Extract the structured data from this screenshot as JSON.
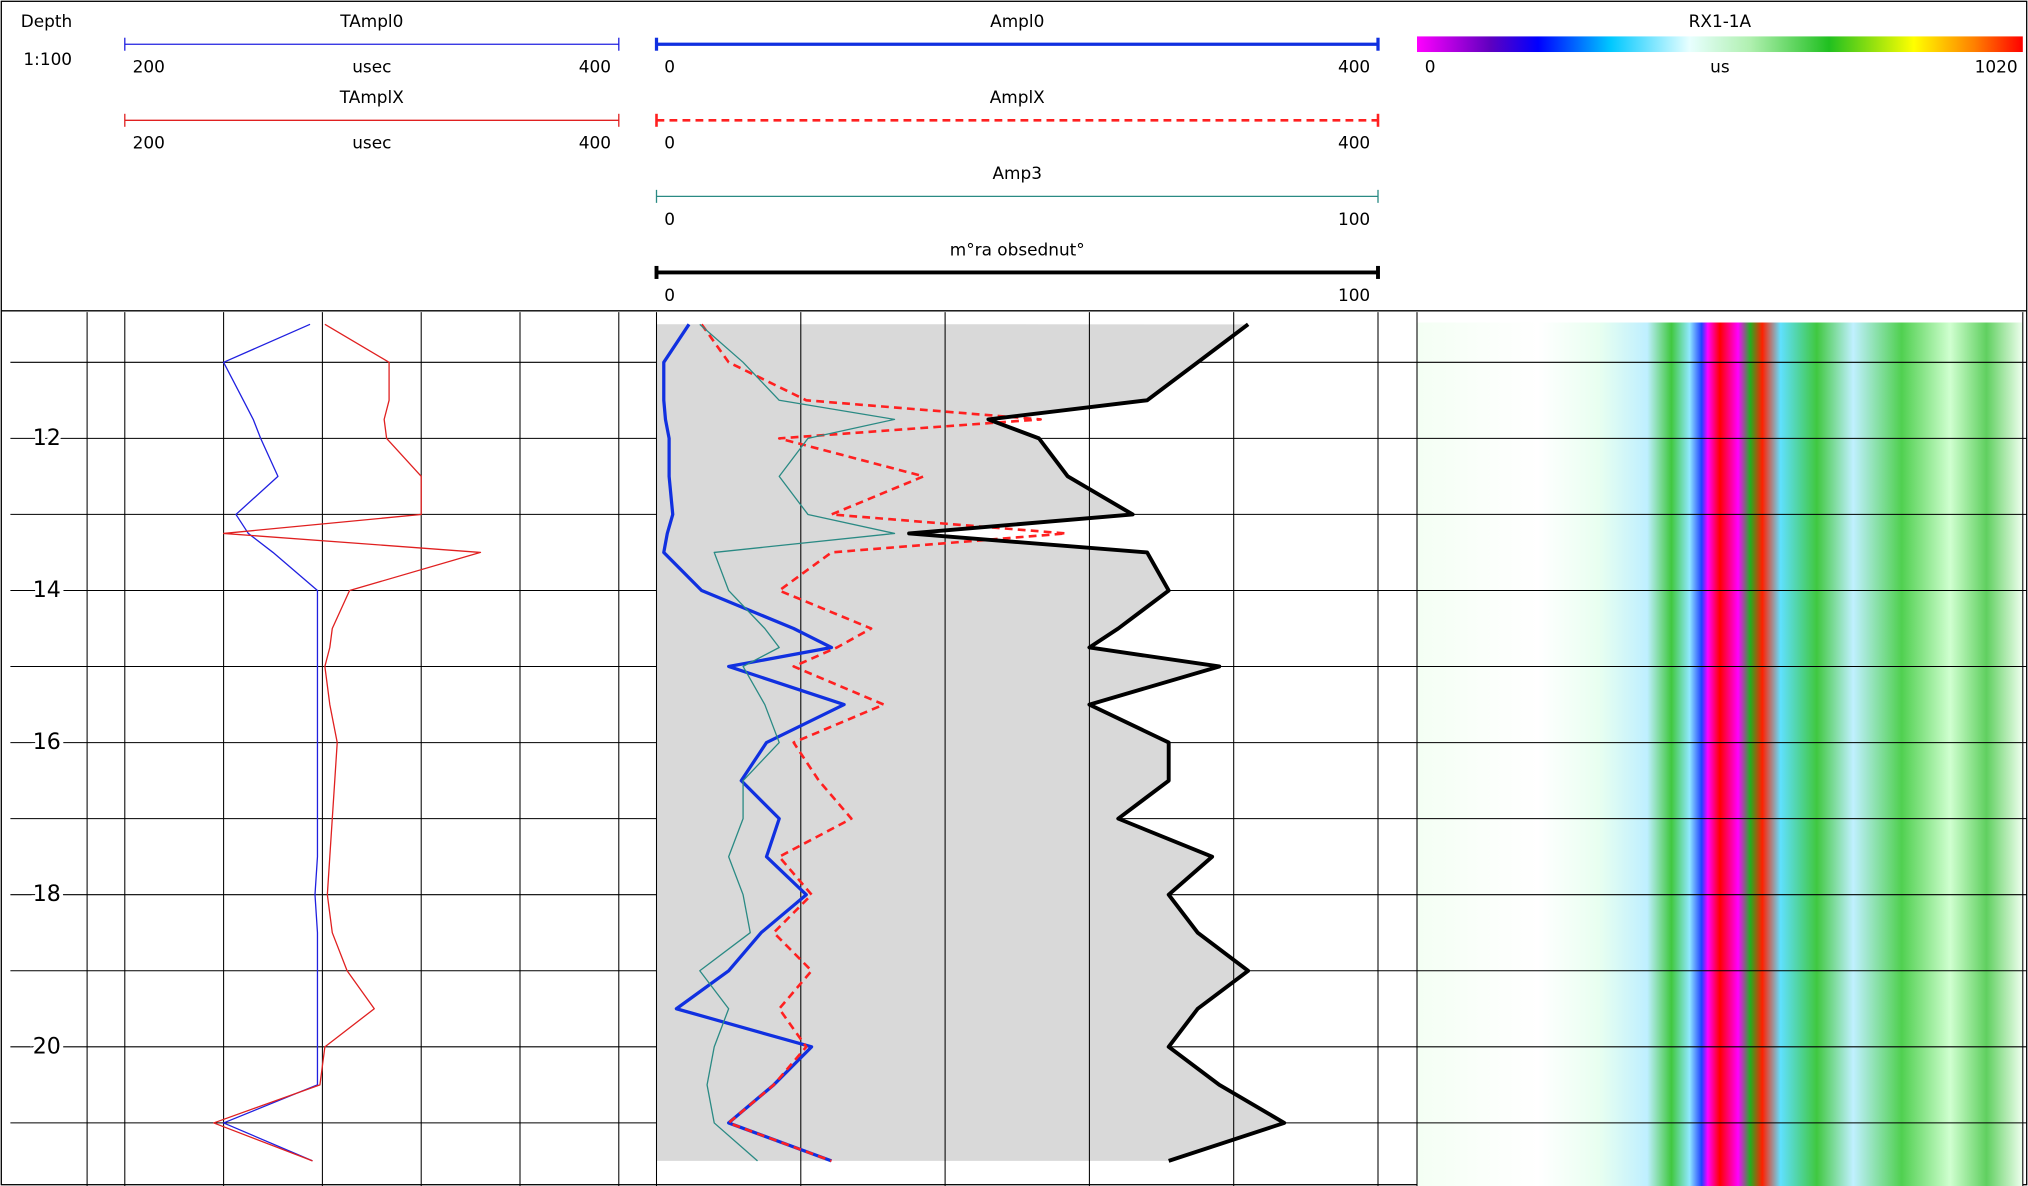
{
  "header": {
    "depth_label": "Depth",
    "scale": "1:100"
  },
  "chart_data": {
    "type": "log",
    "depth": [
      10.5,
      11,
      11.5,
      11.75,
      12,
      12.5,
      13,
      13.25,
      13.5,
      14,
      14.5,
      14.75,
      15,
      15.5,
      16,
      16.5,
      17,
      17.5,
      18,
      18.5,
      19,
      19.5,
      20,
      20.5,
      21,
      21.5
    ],
    "ylim": [
      10.34,
      21.83
    ],
    "yticks": [
      12,
      14,
      16,
      18,
      20
    ],
    "minor_yticks": [
      11,
      13,
      15,
      17,
      19,
      21
    ],
    "tracks": [
      {
        "xticks": [
          200,
          240,
          280,
          320,
          360,
          400
        ],
        "curves": [
          {
            "name": "TAmpl0",
            "unit": "usec",
            "color": "#2020e0",
            "width": 1,
            "xlim": [
              200,
              400
            ],
            "values": [
              275,
              240,
              248,
              252,
              255,
              262,
              245,
              250,
              260,
              278,
              278,
              278,
              278,
              278,
              278,
              278,
              278,
              278,
              277,
              278,
              278,
              278,
              278,
              278,
              240,
              276
            ]
          },
          {
            "name": "TAmplX",
            "unit": "usec",
            "color": "#e02020",
            "width": 1,
            "xlim": [
              200,
              400
            ],
            "values": [
              281,
              307,
              307,
              305,
              306,
              320,
              320,
              240,
              344,
              291,
              284,
              283,
              281,
              283,
              286,
              285,
              284,
              283,
              282,
              284,
              290,
              301,
              281,
              279,
              236,
              276
            ]
          }
        ]
      },
      {
        "xticks": [
          0,
          80,
          160,
          240,
          320,
          400
        ],
        "curves": [
          {
            "name": "Ampl0",
            "color": "#1030e0",
            "width": 2.5,
            "xlim": [
              0,
              400
            ],
            "values": [
              18,
              4,
              4,
              5,
              7,
              7,
              9,
              6,
              4,
              25,
              76,
              97,
              40,
              104,
              61,
              47,
              68,
              61,
              83,
              58,
              40,
              11,
              86,
              65,
              40,
              97
            ]
          },
          {
            "name": "AmplX",
            "color": "#ff2020",
            "width": 2,
            "dash": true,
            "xlim": [
              0,
              400
            ],
            "values": [
              25,
              40,
              83,
              213,
              68,
              148,
              97,
              227,
              97,
              68,
              119,
              100,
              76,
              126,
              76,
              90,
              108,
              68,
              86,
              65,
              86,
              68,
              83,
              65,
              40,
              97
            ]
          },
          {
            "name": "Amp3",
            "color": "#2a8a84",
            "width": 1,
            "xlim": [
              0,
              100
            ],
            "values": [
              6,
              12,
              17,
              33,
              21,
              17,
              21,
              33,
              8,
              10,
              15,
              17,
              12,
              15,
              17,
              12,
              12,
              10,
              12,
              13,
              6,
              10,
              8,
              7,
              8,
              14
            ]
          },
          {
            "name": "m°ra obsednut°",
            "color": "#000000",
            "width": 3,
            "fill": "#d9d9d9",
            "xlim": [
              0,
              100
            ],
            "values": [
              82,
              75,
              68,
              46,
              53,
              57,
              66,
              35,
              68,
              71,
              64,
              60,
              78,
              60,
              71,
              71,
              64,
              77,
              71,
              75,
              82,
              75,
              71,
              78,
              87,
              71
            ]
          }
        ]
      },
      {
        "type": "image",
        "name": "RX1-1A",
        "unit": "us",
        "xlim": [
          0,
          1020
        ]
      }
    ]
  }
}
